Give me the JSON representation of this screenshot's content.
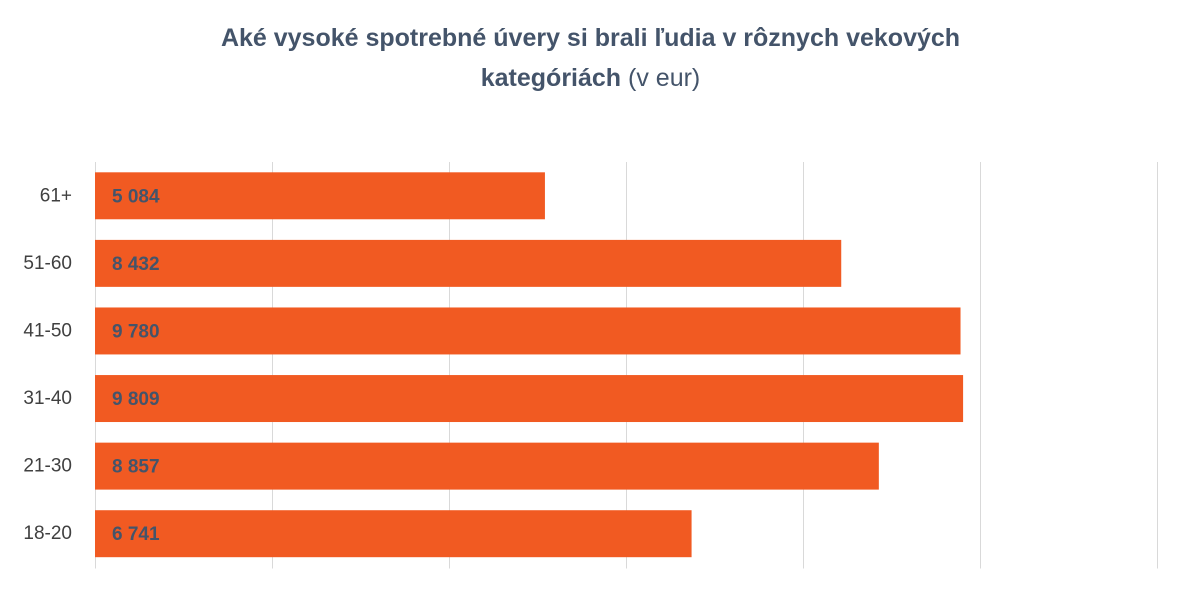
{
  "colors": {
    "bar": "#F15A22",
    "title": "#44546A",
    "data_label": "#44546A",
    "category_label": "#404040",
    "gridline": "#D9D9D9",
    "background": "#FFFFFF"
  },
  "chart_data": {
    "type": "bar",
    "orientation": "horizontal",
    "title": {
      "line1": "Aké vysoké spotrebné úvery si brali ľudia v rôznych vekových",
      "line2_bold": "kategóriách",
      "line2_unit": "(v eur)"
    },
    "categories": [
      "61+",
      "51-60",
      "41-50",
      "31-40",
      "21-30",
      "18-20"
    ],
    "values": [
      5084,
      8432,
      9780,
      9809,
      8857,
      6741
    ],
    "data_labels": [
      "5 084",
      "8 432",
      "9 780",
      "9 809",
      "8 857",
      "6 741"
    ],
    "xlim": [
      0,
      12000
    ],
    "x_major_step": 2000,
    "x_gridlines": true,
    "x_tick_labels_visible": false
  }
}
